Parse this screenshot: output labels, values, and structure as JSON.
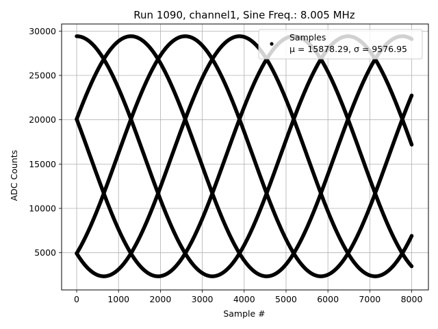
{
  "chart_data": {
    "type": "scatter",
    "title": "Run 1090, channel1, Sine Freq.: 8.005 MHz",
    "xlabel": "Sample #",
    "ylabel": "ADC Counts",
    "xlim": [
      -360,
      8400
    ],
    "ylim": [
      800,
      30800
    ],
    "xticks": [
      0,
      1000,
      2000,
      3000,
      4000,
      5000,
      6000,
      7000,
      8000
    ],
    "xtick_labels": [
      "0",
      "1000",
      "2000",
      "3000",
      "4000",
      "5000",
      "6000",
      "7000",
      "8000"
    ],
    "yticks": [
      5000,
      10000,
      15000,
      20000,
      25000,
      30000
    ],
    "ytick_labels": [
      "5000",
      "10000",
      "15000",
      "20000",
      "25000",
      "30000"
    ],
    "grid": true,
    "legend": {
      "location": "top-right",
      "entries": [
        "Samples",
        "μ = 15878.29, σ = 9576.95"
      ]
    },
    "series": [
      {
        "name": "Samples",
        "color": "#000000",
        "sample_range": [
          0,
          8000
        ],
        "offset": 15878.29,
        "amplitude": 13540,
        "period_samples": 6480,
        "phases_deg": [
          90,
          18,
          306,
          234,
          162
        ]
      }
    ]
  }
}
